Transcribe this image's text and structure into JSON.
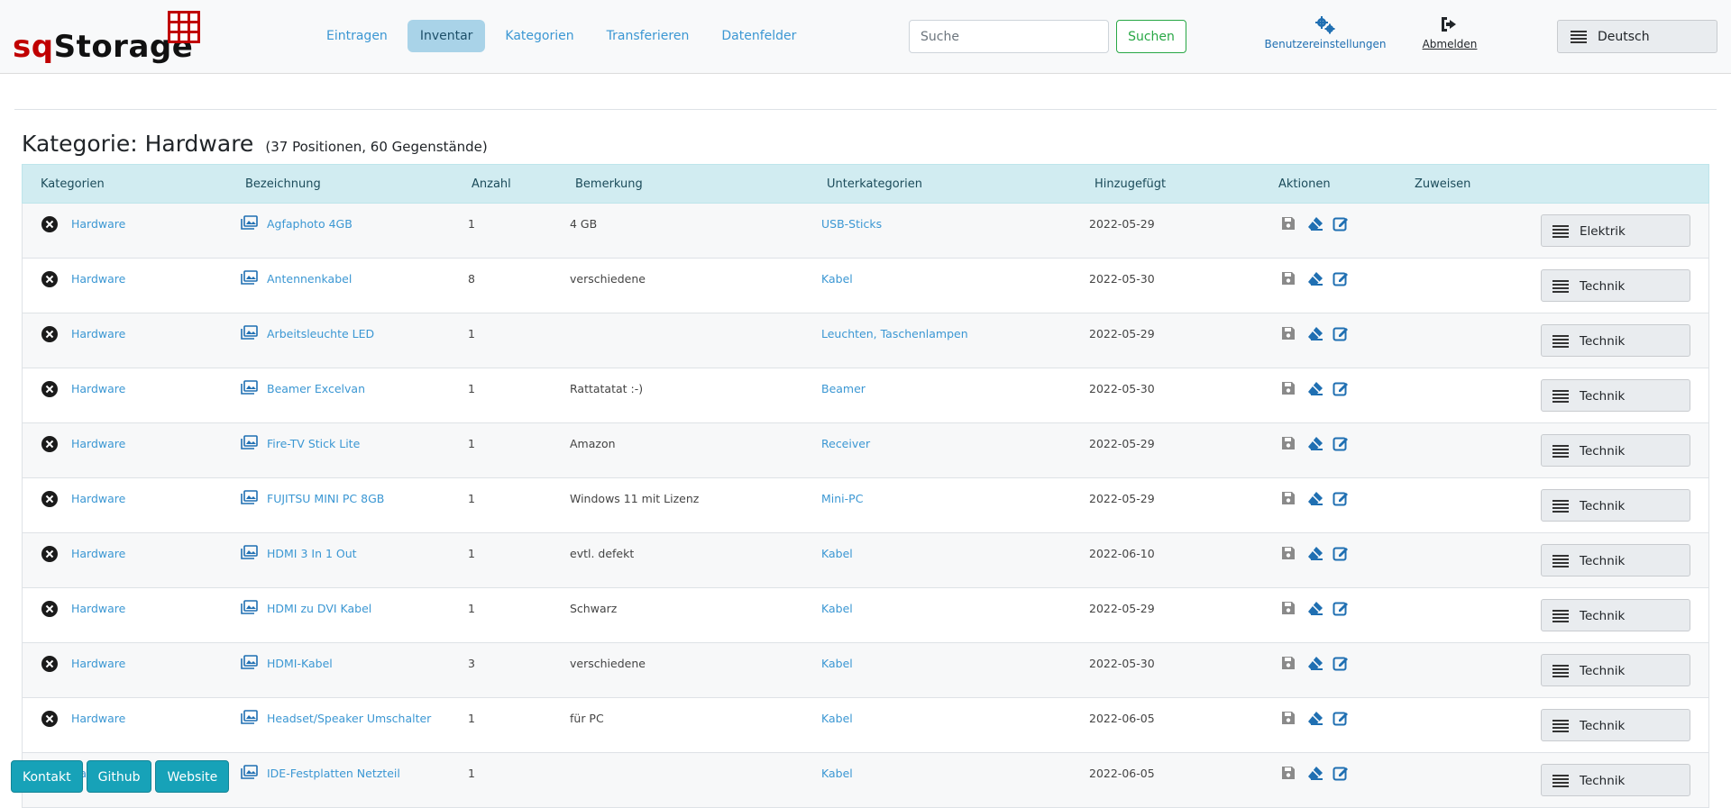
{
  "brand": {
    "sq": "sq",
    "storage": "Storage"
  },
  "nav": {
    "items": [
      {
        "label": "Eintragen",
        "active": false
      },
      {
        "label": "Inventar",
        "active": true
      },
      {
        "label": "Kategorien",
        "active": false
      },
      {
        "label": "Transferieren",
        "active": false
      },
      {
        "label": "Datenfelder",
        "active": false
      }
    ]
  },
  "search": {
    "placeholder": "Suche",
    "button": "Suchen"
  },
  "user": {
    "settings": "Benutzereinstellungen",
    "logout": "Abmelden",
    "language": "Deutsch"
  },
  "title": {
    "main": "Kategorie: Hardware",
    "sub": "(37 Positionen, 60 Gegenstände)"
  },
  "table": {
    "headers": [
      "Kategorien",
      "Bezeichnung",
      "Anzahl",
      "Bemerkung",
      "Unterkategorien",
      "Hinzugefügt",
      "Aktionen",
      "Zuweisen"
    ],
    "rows": [
      {
        "category": "Hardware",
        "name": "Agfaphoto 4GB",
        "qty": "1",
        "note": "4 GB",
        "sub": "USB-Sticks",
        "added": "2022-05-29",
        "assign": "Elektrik"
      },
      {
        "category": "Hardware",
        "name": "Antennenkabel",
        "qty": "8",
        "note": "verschiedene",
        "sub": "Kabel",
        "added": "2022-05-30",
        "assign": "Technik"
      },
      {
        "category": "Hardware",
        "name": "Arbeitsleuchte LED",
        "qty": "1",
        "note": "",
        "sub": "Leuchten, Taschenlampen",
        "added": "2022-05-29",
        "assign": "Technik"
      },
      {
        "category": "Hardware",
        "name": "Beamer Excelvan",
        "qty": "1",
        "note": "Rattatatat :-)",
        "sub": "Beamer",
        "added": "2022-05-30",
        "assign": "Technik"
      },
      {
        "category": "Hardware",
        "name": "Fire-TV Stick Lite",
        "qty": "1",
        "note": "Amazon",
        "sub": "Receiver",
        "added": "2022-05-29",
        "assign": "Technik"
      },
      {
        "category": "Hardware",
        "name": "FUJITSU MINI PC 8GB",
        "qty": "1",
        "note": "Windows 11 mit Lizenz",
        "sub": "Mini-PC",
        "added": "2022-05-29",
        "assign": "Technik"
      },
      {
        "category": "Hardware",
        "name": "HDMI 3 In 1 Out",
        "qty": "1",
        "note": "evtl. defekt",
        "sub": "Kabel",
        "added": "2022-06-10",
        "assign": "Technik"
      },
      {
        "category": "Hardware",
        "name": "HDMI zu DVI Kabel",
        "qty": "1",
        "note": "Schwarz",
        "sub": "Kabel",
        "added": "2022-05-29",
        "assign": "Technik"
      },
      {
        "category": "Hardware",
        "name": "HDMI-Kabel",
        "qty": "3",
        "note": "verschiedene",
        "sub": "Kabel",
        "added": "2022-05-30",
        "assign": "Technik"
      },
      {
        "category": "Hardware",
        "name": "Headset/Speaker Umschalter",
        "qty": "1",
        "note": "für PC",
        "sub": "Kabel",
        "added": "2022-06-05",
        "assign": "Technik"
      },
      {
        "category": "Hardware",
        "name": "IDE-Festplatten Netzteil",
        "qty": "1",
        "note": "",
        "sub": "Kabel",
        "added": "2022-06-05",
        "assign": "Technik"
      }
    ]
  },
  "footer": {
    "contact": "Kontakt",
    "github": "Github",
    "website": "Website"
  },
  "colors": {
    "link": "#3b97d3",
    "header_bg": "#d1ecf1",
    "nav_active": "#a9d3e8",
    "success": "#28a745",
    "info": "#17a2b8",
    "brand_red": "#c00000"
  }
}
